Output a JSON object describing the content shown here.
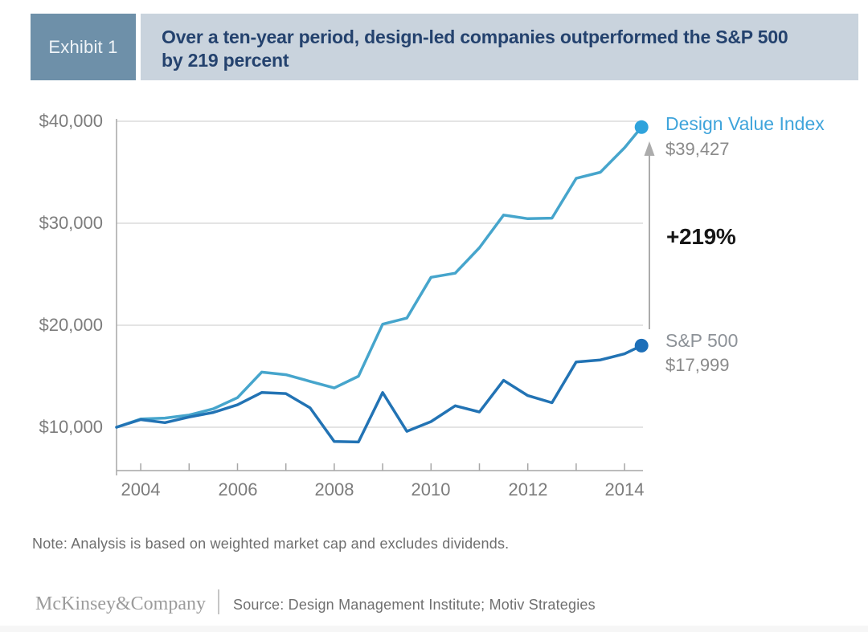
{
  "header": {
    "exhibit_label": "Exhibit 1",
    "title": "Over a ten-year period, design-led companies outperformed the S&P 500 by 219 percent",
    "title_line1": "Over a ten-year period, design-led companies outperformed the S&P 500",
    "title_line2": "by 219 percent"
  },
  "colors": {
    "exhibit_bg": "#6E90A9",
    "exhibit_text": "#EFF4F8",
    "title_bg": "#C9D3DD",
    "title_text": "#24426E",
    "dvi_line": "#46A5CC",
    "dvi_dot": "#2FA3DC",
    "dvi_label_text": "#3FA4DB",
    "sp_line": "#2273B4",
    "sp_dot": "#1D6FB8",
    "grid": "#DBDBDB",
    "axis": "#A6A6A6",
    "arrow": "#ACACAC"
  },
  "chart_data": {
    "type": "line",
    "title": "Over a ten-year period, design-led companies outperformed the S&P 500 by 219 percent",
    "xlabel": "",
    "ylabel": "",
    "grid": "horizontal",
    "legend_position": "right of line endpoints",
    "xlim": [
      2003.5,
      2014.6
    ],
    "ylim": [
      5800,
      41000
    ],
    "y_ticks": [
      "$40,000",
      "$30,000",
      "$20,000",
      "$10,000"
    ],
    "y_tick_values": [
      40000,
      30000,
      20000,
      10000
    ],
    "x_tick_years": [
      2004,
      2005,
      2006,
      2007,
      2008,
      2009,
      2010,
      2011,
      2012,
      2013,
      2014
    ],
    "x_label_years": [
      "2004",
      "2006",
      "2008",
      "2010",
      "2012",
      "2014"
    ],
    "x": [
      2003.5,
      2004,
      2004.5,
      2005,
      2005.5,
      2006,
      2006.5,
      2007,
      2007.5,
      2008,
      2008.5,
      2009,
      2009.5,
      2010,
      2010.5,
      2011,
      2011.5,
      2012,
      2012.5,
      2013,
      2013.5,
      2014,
      2014.35
    ],
    "series": [
      {
        "name": "Design Value Index",
        "end_label": "$39,427",
        "end_value": 39427,
        "color": "#46A5CC",
        "dot_color": "#2FA3DC",
        "values": [
          10000,
          10800,
          10900,
          11200,
          11800,
          12900,
          15400,
          15150,
          14500,
          13850,
          15000,
          20100,
          20700,
          24700,
          25100,
          27600,
          30800,
          30450,
          30500,
          34400,
          35000,
          37400,
          39427
        ]
      },
      {
        "name": "S&P 500",
        "end_label": "$17,999",
        "end_value": 17999,
        "color": "#2273B4",
        "dot_color": "#1D6FB8",
        "values": [
          10000,
          10750,
          10450,
          11000,
          11450,
          12200,
          13400,
          13300,
          11900,
          8600,
          8550,
          13400,
          9600,
          10550,
          12100,
          11500,
          14600,
          13100,
          12400,
          16400,
          16600,
          17200,
          17999
        ]
      }
    ],
    "annotation": "+219%"
  },
  "note": "Note: Analysis is based on weighted market cap and excludes dividends.",
  "footer": {
    "brand": "McKinsey&Company",
    "source": "Source: Design Management Institute; Motiv Strategies"
  }
}
